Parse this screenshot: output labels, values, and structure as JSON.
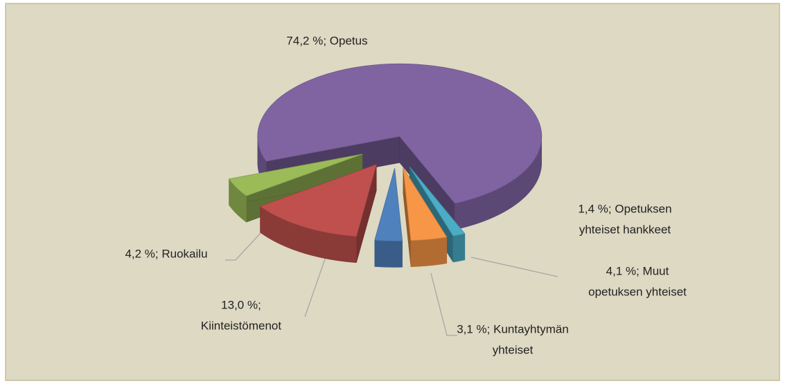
{
  "chart_data": {
    "type": "pie",
    "values": [
      74.2,
      1.4,
      4.1,
      3.1,
      13.0,
      4.2
    ],
    "data_labels": [
      [
        "74,2 %; Opetus"
      ],
      [
        "1,4 %; Opetuksen",
        "yhteiset hankkeet"
      ],
      [
        "4,1 %; Muut",
        "opetuksen yhteiset"
      ],
      [
        "3,1 %; Kuntayhtymän",
        "yhteiset"
      ],
      [
        "13,0 %;",
        "Kiinteistömenot"
      ],
      [
        "4,2 %; Ruokailu"
      ]
    ],
    "colors": [
      "#8064a2",
      "#4bacc6",
      "#f79646",
      "#4f81bd",
      "#c0504d",
      "#9bbb59"
    ]
  }
}
